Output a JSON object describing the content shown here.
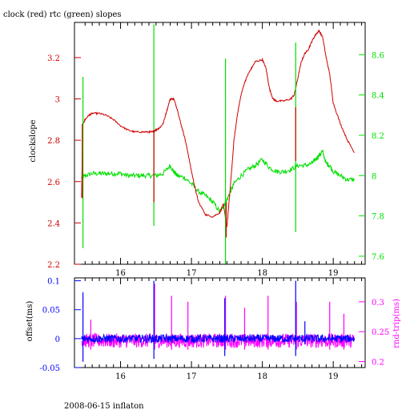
{
  "chart_data": [
    {
      "type": "line",
      "title": "clock (red) rtc (green) slopes",
      "xlabel": "",
      "ylabel": "clockslope",
      "y2label": "",
      "xlim": [
        15.35,
        19.45
      ],
      "ylim": [
        2.2,
        3.37
      ],
      "y2lim": [
        7.56,
        8.76
      ],
      "x_ticks": [
        "16",
        "17",
        "18",
        "19"
      ],
      "y_ticks": [
        "2.2",
        "2.4",
        "2.6",
        "2.8",
        "3",
        "3.2"
      ],
      "y2_ticks": [
        "7.6",
        "7.8",
        "8",
        "8.2",
        "8.4",
        "8.6"
      ],
      "series": [
        {
          "name": "clock",
          "axis": "left",
          "color": "#d00000",
          "x": [
            15.45,
            15.47,
            15.5,
            15.55,
            15.6,
            15.7,
            15.8,
            15.9,
            16.0,
            16.1,
            16.2,
            16.3,
            16.4,
            16.45,
            16.5,
            16.55,
            16.6,
            16.65,
            16.7,
            16.75,
            16.8,
            16.85,
            16.9,
            16.95,
            17.0,
            17.05,
            17.1,
            17.2,
            17.3,
            17.4,
            17.45,
            17.5,
            17.55,
            17.6,
            17.65,
            17.7,
            17.75,
            17.8,
            17.85,
            17.9,
            18.0,
            18.05,
            18.1,
            18.15,
            18.2,
            18.3,
            18.4,
            18.45,
            18.5,
            18.55,
            18.6,
            18.65,
            18.7,
            18.75,
            18.8,
            18.85,
            18.9,
            18.95,
            19.0,
            19.1,
            19.2,
            19.3
          ],
          "y": [
            2.52,
            2.88,
            2.9,
            2.92,
            2.93,
            2.93,
            2.92,
            2.9,
            2.87,
            2.85,
            2.84,
            2.84,
            2.84,
            2.84,
            2.85,
            2.86,
            2.88,
            2.94,
            3.0,
            3.0,
            2.95,
            2.88,
            2.82,
            2.74,
            2.65,
            2.57,
            2.5,
            2.44,
            2.43,
            2.45,
            2.49,
            2.38,
            2.58,
            2.8,
            2.93,
            3.02,
            3.08,
            3.12,
            3.15,
            3.18,
            3.19,
            3.15,
            3.05,
            3.0,
            2.99,
            2.99,
            3.0,
            3.02,
            3.1,
            3.18,
            3.22,
            3.24,
            3.28,
            3.31,
            3.33,
            3.3,
            3.2,
            3.12,
            2.98,
            2.88,
            2.8,
            2.74
          ]
        },
        {
          "name": "rtc",
          "axis": "right",
          "color": "#00e000",
          "x": [
            15.45,
            15.5,
            15.6,
            15.7,
            15.8,
            15.9,
            16.0,
            16.1,
            16.2,
            16.3,
            16.4,
            16.5,
            16.6,
            16.7,
            16.75,
            16.8,
            16.9,
            17.0,
            17.1,
            17.2,
            17.3,
            17.4,
            17.45,
            17.5,
            17.55,
            17.6,
            17.7,
            17.8,
            17.9,
            18.0,
            18.1,
            18.2,
            18.3,
            18.4,
            18.5,
            18.6,
            18.7,
            18.75,
            18.8,
            18.85,
            18.9,
            18.95,
            19.0,
            19.1,
            19.2,
            19.3
          ],
          "y": [
            7.99,
            8.0,
            8.01,
            8.01,
            8.01,
            8.01,
            8.01,
            8.0,
            8.0,
            8.0,
            8.0,
            8.0,
            8.01,
            8.05,
            8.02,
            8.0,
            7.99,
            7.96,
            7.92,
            7.9,
            7.87,
            7.82,
            7.85,
            7.88,
            7.92,
            7.96,
            8.0,
            8.03,
            8.05,
            8.08,
            8.04,
            8.02,
            8.02,
            8.03,
            8.05,
            8.05,
            8.06,
            8.08,
            8.1,
            8.12,
            8.06,
            8.05,
            8.02,
            8.0,
            7.98,
            7.98
          ]
        }
      ],
      "spikes": [
        {
          "x": 15.47,
          "axis": "right",
          "min": 7.64,
          "max": 8.49,
          "color": "#00e000"
        },
        {
          "x": 16.47,
          "axis": "right",
          "min": 7.75,
          "max": 8.75,
          "color": "#00e000"
        },
        {
          "x": 17.48,
          "axis": "right",
          "min": 7.56,
          "max": 8.58,
          "color": "#00e000"
        },
        {
          "x": 18.47,
          "axis": "right",
          "min": 7.72,
          "max": 8.66,
          "color": "#00e000"
        },
        {
          "x": 15.46,
          "axis": "left",
          "min": 2.52,
          "max": 2.88,
          "color": "#d00000"
        },
        {
          "x": 16.47,
          "axis": "left",
          "min": 2.5,
          "max": 2.85,
          "color": "#d00000"
        },
        {
          "x": 17.49,
          "axis": "left",
          "min": 2.33,
          "max": 2.5,
          "color": "#d00000"
        },
        {
          "x": 18.47,
          "axis": "left",
          "min": 2.7,
          "max": 2.96,
          "color": "#d00000"
        }
      ]
    },
    {
      "type": "line",
      "title": "",
      "xlabel": "",
      "ylabel": "offset(ms)",
      "y2label": "rnd-trip(ms)",
      "xlim": [
        15.35,
        19.45
      ],
      "ylim": [
        -0.05,
        0.105
      ],
      "y2lim": [
        0.19,
        0.34
      ],
      "x_ticks": [
        "16",
        "17",
        "18",
        "19"
      ],
      "y_ticks": [
        "-0.05",
        "0",
        "0.05",
        "0.1"
      ],
      "y2_ticks": [
        "0.2",
        "0.25",
        "0.3"
      ],
      "series": [
        {
          "name": "offset",
          "axis": "left",
          "color": "#0000ff",
          "x_start": 15.45,
          "x_end": 19.3,
          "baseline": 0.0,
          "noise": 0.007,
          "spikes": [
            {
              "x": 15.47,
              "min": -0.04,
              "max": 0.08
            },
            {
              "x": 16.47,
              "min": -0.035,
              "max": 0.1
            },
            {
              "x": 17.47,
              "min": -0.03,
              "max": 0.07
            },
            {
              "x": 18.47,
              "min": -0.03,
              "max": 0.1
            },
            {
              "x": 18.6,
              "min": -0.01,
              "max": 0.03
            }
          ]
        },
        {
          "name": "rnd-trip",
          "axis": "right",
          "color": "#ff00ff",
          "x_start": 15.45,
          "x_end": 19.3,
          "baseline": 0.235,
          "noise": 0.012,
          "spikes": [
            {
              "x": 15.58,
              "min": 0.22,
              "max": 0.27
            },
            {
              "x": 16.48,
              "min": 0.22,
              "max": 0.33
            },
            {
              "x": 16.72,
              "min": 0.22,
              "max": 0.31
            },
            {
              "x": 16.95,
              "min": 0.22,
              "max": 0.3
            },
            {
              "x": 17.48,
              "min": 0.22,
              "max": 0.31
            },
            {
              "x": 17.75,
              "min": 0.22,
              "max": 0.29
            },
            {
              "x": 18.08,
              "min": 0.22,
              "max": 0.31
            },
            {
              "x": 18.48,
              "min": 0.22,
              "max": 0.3
            },
            {
              "x": 18.95,
              "min": 0.22,
              "max": 0.3
            },
            {
              "x": 19.15,
              "min": 0.22,
              "max": 0.28
            }
          ]
        }
      ]
    }
  ],
  "footer": "2008-06-15 inflaton",
  "colors": {
    "left_axis_top": "#d00000",
    "right_axis_top": "#00e000",
    "left_axis_bottom": "#0000ff",
    "right_axis_bottom": "#ff00ff",
    "frame": "#000000"
  }
}
